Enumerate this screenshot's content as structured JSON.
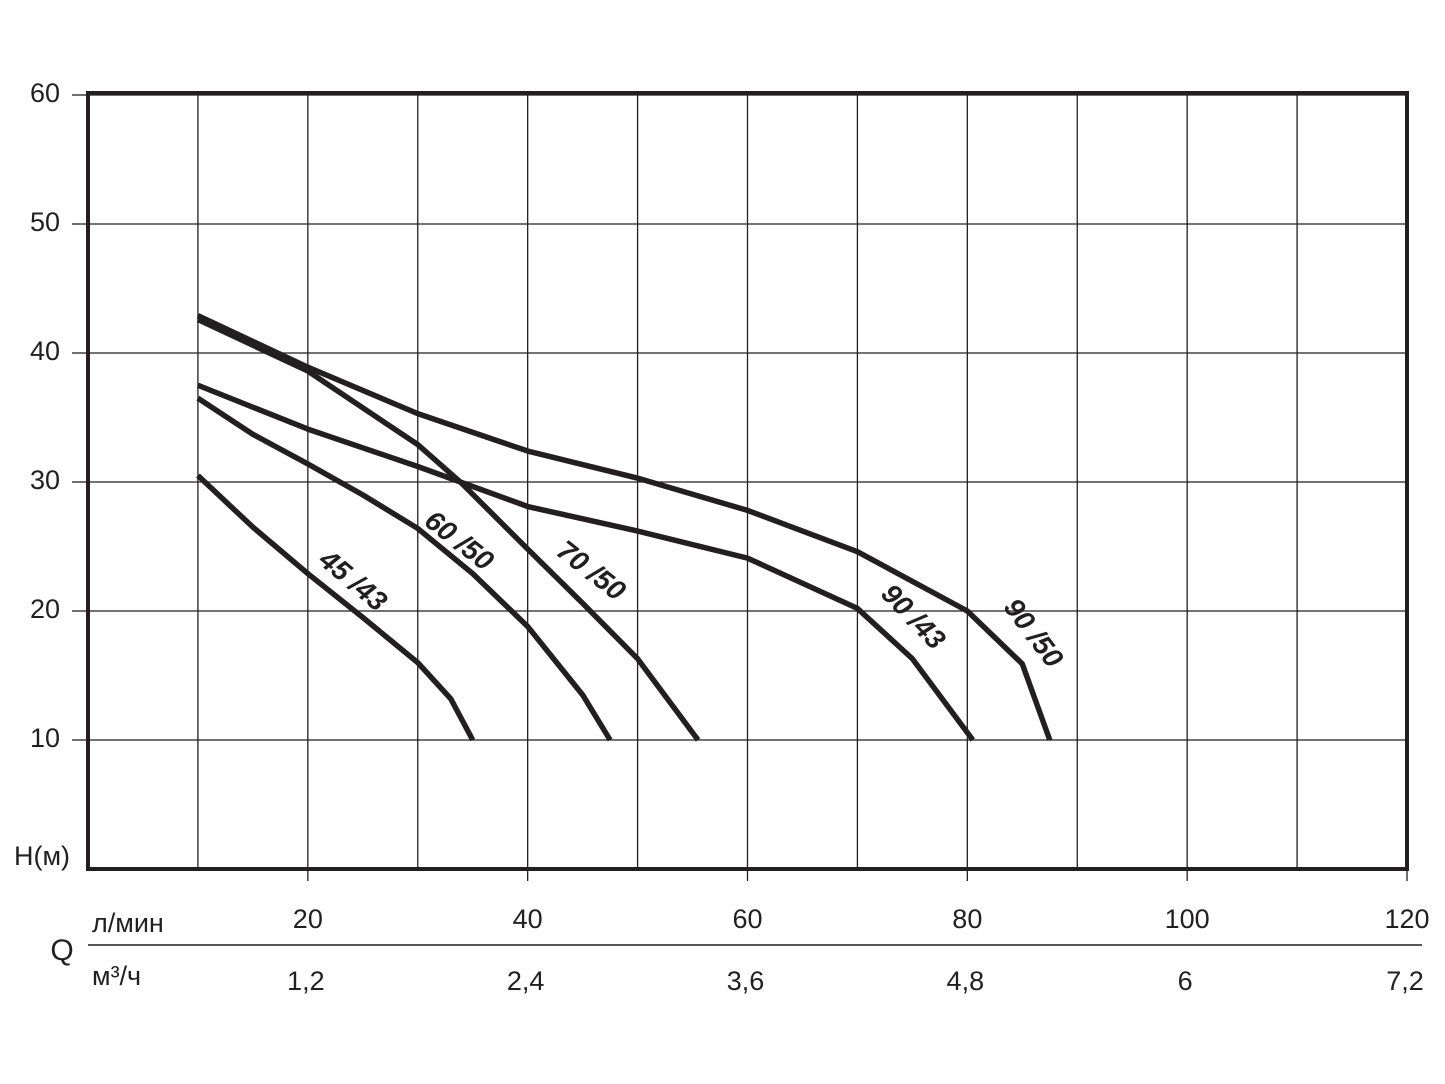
{
  "chart_data": {
    "type": "line",
    "y_label": "H(м)",
    "x_label": "Q",
    "x_unit": "л/мин",
    "x2_unit": "м³/ч",
    "xlim": [
      0,
      120
    ],
    "xticks": [
      20,
      40,
      60,
      80,
      100,
      120
    ],
    "xminorticks": [
      10,
      30,
      50,
      70,
      90,
      110
    ],
    "x2lim": [
      0,
      7.2
    ],
    "x2ticks": [
      {
        "value": 1.2,
        "label": "1,2"
      },
      {
        "value": 2.4,
        "label": "2,4"
      },
      {
        "value": 3.6,
        "label": "3,6"
      },
      {
        "value": 4.8,
        "label": "4,8"
      },
      6,
      {
        "value": 7.2,
        "label": "7,2"
      }
    ],
    "ylim": [
      0,
      60
    ],
    "yticks": [
      10,
      20,
      30,
      40,
      50,
      60
    ],
    "grid": true,
    "series": [
      {
        "name": "45 /43",
        "color": "#231f20",
        "x": [
          10,
          15,
          20,
          25,
          30,
          33,
          35
        ],
        "values": [
          30.5,
          26.5,
          22.9,
          19.5,
          16,
          13.2,
          10
        ]
      },
      {
        "name": "60 /50",
        "color": "#231f20",
        "x": [
          10,
          15,
          20,
          25,
          30,
          35,
          40,
          45,
          47.5
        ],
        "values": [
          36.5,
          33.7,
          31.4,
          29,
          26.4,
          22.9,
          18.8,
          13.5,
          10
        ]
      },
      {
        "name": "70 /50",
        "color": "#231f20",
        "x": [
          10,
          20,
          30,
          34,
          40,
          45,
          50,
          55.5
        ],
        "values": [
          42.6,
          38.6,
          32.9,
          29.9,
          24.8,
          20.6,
          16.3,
          10
        ]
      },
      {
        "name": "90 /43",
        "color": "#231f20",
        "x": [
          10,
          20,
          30,
          40,
          50,
          60,
          70,
          75,
          80.5
        ],
        "values": [
          37.5,
          34.1,
          31.2,
          28.1,
          26.2,
          24.1,
          20.2,
          16.3,
          10
        ]
      },
      {
        "name": "90 /50",
        "color": "#231f20",
        "x": [
          10,
          20,
          30,
          40,
          50,
          60,
          70,
          80,
          85,
          87.5
        ],
        "values": [
          42.9,
          38.9,
          35.3,
          32.4,
          30.3,
          27.8,
          24.6,
          20,
          15.9,
          10
        ]
      }
    ]
  }
}
